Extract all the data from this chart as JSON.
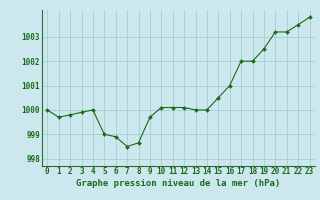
{
  "x": [
    0,
    1,
    2,
    3,
    4,
    5,
    6,
    7,
    8,
    9,
    10,
    11,
    12,
    13,
    14,
    15,
    16,
    17,
    18,
    19,
    20,
    21,
    22,
    23
  ],
  "y": [
    1000.0,
    999.7,
    999.8,
    999.9,
    1000.0,
    999.0,
    998.9,
    998.5,
    998.65,
    999.7,
    1000.1,
    1000.1,
    1000.1,
    1000.0,
    1000.0,
    1000.5,
    1001.0,
    1002.0,
    1002.0,
    1002.5,
    1003.2,
    1003.2,
    1003.5,
    1003.8
  ],
  "line_color": "#1a6b1a",
  "marker_color": "#1a6b1a",
  "bg_color": "#cce8ee",
  "grid_color": "#99cccc",
  "title": "Graphe pression niveau de la mer (hPa)",
  "ylim_min": 997.7,
  "ylim_max": 1004.1,
  "yticks": [
    998,
    999,
    1000,
    1001,
    1002,
    1003
  ],
  "xticks": [
    0,
    1,
    2,
    3,
    4,
    5,
    6,
    7,
    8,
    9,
    10,
    11,
    12,
    13,
    14,
    15,
    16,
    17,
    18,
    19,
    20,
    21,
    22,
    23
  ],
  "title_fontsize": 6.5,
  "tick_fontsize": 5.5
}
